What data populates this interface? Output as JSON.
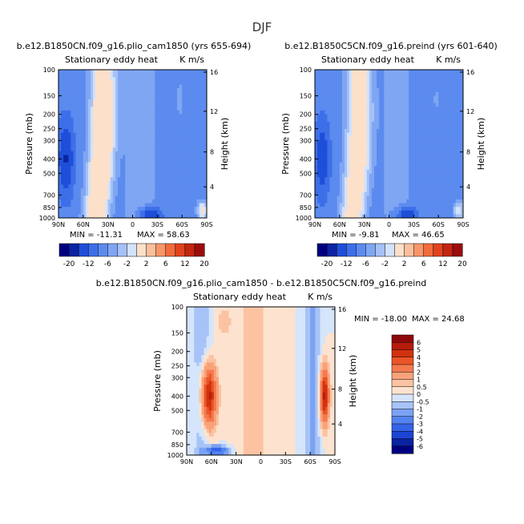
{
  "figure_title": "DJF",
  "palette": {
    "full": [
      "#00007f",
      "#0b24a3",
      "#1f4fd8",
      "#3d6fe8",
      "#5c8bef",
      "#7fa6f3",
      "#a5c1f7",
      "#d2e3fb",
      "#fde0c9",
      "#fbbf9c",
      "#f79668",
      "#f26b3c",
      "#e0431e",
      "#c2260f",
      "#9b0d0d"
    ],
    "diff": [
      "#00007f",
      "#0a23a1",
      "#1c44d4",
      "#3563e6",
      "#5383ee",
      "#7ba2f3",
      "#a7c3f7",
      "#d5e5fb",
      "#fde3cf",
      "#fbc3a2",
      "#f8a27a",
      "#f47a4f",
      "#ea5527",
      "#d2320f",
      "#b61b0b",
      "#8e0a0a"
    ]
  },
  "chart_data": [
    {
      "type": "heatmap",
      "title": "b.e12.B1850CN.f09_g16.plio_cam1850 (yrs 655-694)",
      "subtitle_left": "Stationary eddy heat",
      "subtitle_right": "K m/s",
      "ylabel": "Pressure (mb)",
      "y2label": "Height (km)",
      "x_ticks": [
        "90N",
        "60N",
        "30N",
        "0",
        "30S",
        "60S",
        "90S"
      ],
      "y_ticks": [
        "100",
        "150",
        "200",
        "250",
        "300",
        "400",
        "500",
        "700",
        "850",
        "1000"
      ],
      "y2_ticks": [
        "16",
        "12",
        "8",
        "4"
      ],
      "min_label": "MIN = -11.31",
      "max_label": "MAX = 58.63",
      "min": -11.31,
      "max": 58.63,
      "colorbar_labels": [
        "-20",
        "-12",
        "-6",
        "-2",
        "2",
        "6",
        "12",
        "20"
      ]
    },
    {
      "type": "heatmap",
      "title": "b.e12.B1850C5CN.f09_g16.preind (yrs 601-640)",
      "subtitle_left": "Stationary eddy heat",
      "subtitle_right": "K m/s",
      "ylabel": "Pressure (mb)",
      "y2label": "Height (km)",
      "x_ticks": [
        "90N",
        "60N",
        "30N",
        "0",
        "30S",
        "60S",
        "90S"
      ],
      "y_ticks": [
        "100",
        "150",
        "200",
        "250",
        "300",
        "400",
        "500",
        "700",
        "850",
        "1000"
      ],
      "y2_ticks": [
        "16",
        "12",
        "8",
        "4"
      ],
      "min_label": "MIN = -9.81",
      "max_label": "MAX = 46.65",
      "min": -9.81,
      "max": 46.65,
      "colorbar_labels": [
        "-20",
        "-12",
        "-6",
        "-2",
        "2",
        "6",
        "12",
        "20"
      ]
    },
    {
      "type": "heatmap",
      "title": "b.e12.B1850CN.f09_g16.plio_cam1850 - b.e12.B1850C5CN.f09_g16.preind",
      "subtitle_left": "Stationary eddy heat",
      "subtitle_right": "K m/s",
      "ylabel": "Pressure (mb)",
      "y2label": "Height (km)",
      "x_ticks": [
        "90N",
        "60N",
        "30N",
        "0",
        "30S",
        "60S",
        "90S"
      ],
      "y_ticks": [
        "100",
        "150",
        "200",
        "250",
        "300",
        "400",
        "500",
        "700",
        "850",
        "1000"
      ],
      "y2_ticks": [
        "16",
        "12",
        "8",
        "4"
      ],
      "min_label": "MIN = -18.00",
      "max_label": "MAX =  24.68",
      "min": -18.0,
      "max": 24.68,
      "colorbar_labels": [
        "6",
        "5",
        "4",
        "3",
        "2",
        "1",
        "0.5",
        "0",
        "-0.5",
        "-1",
        "-2",
        "-3",
        "-4",
        "-5",
        "-6"
      ]
    }
  ]
}
